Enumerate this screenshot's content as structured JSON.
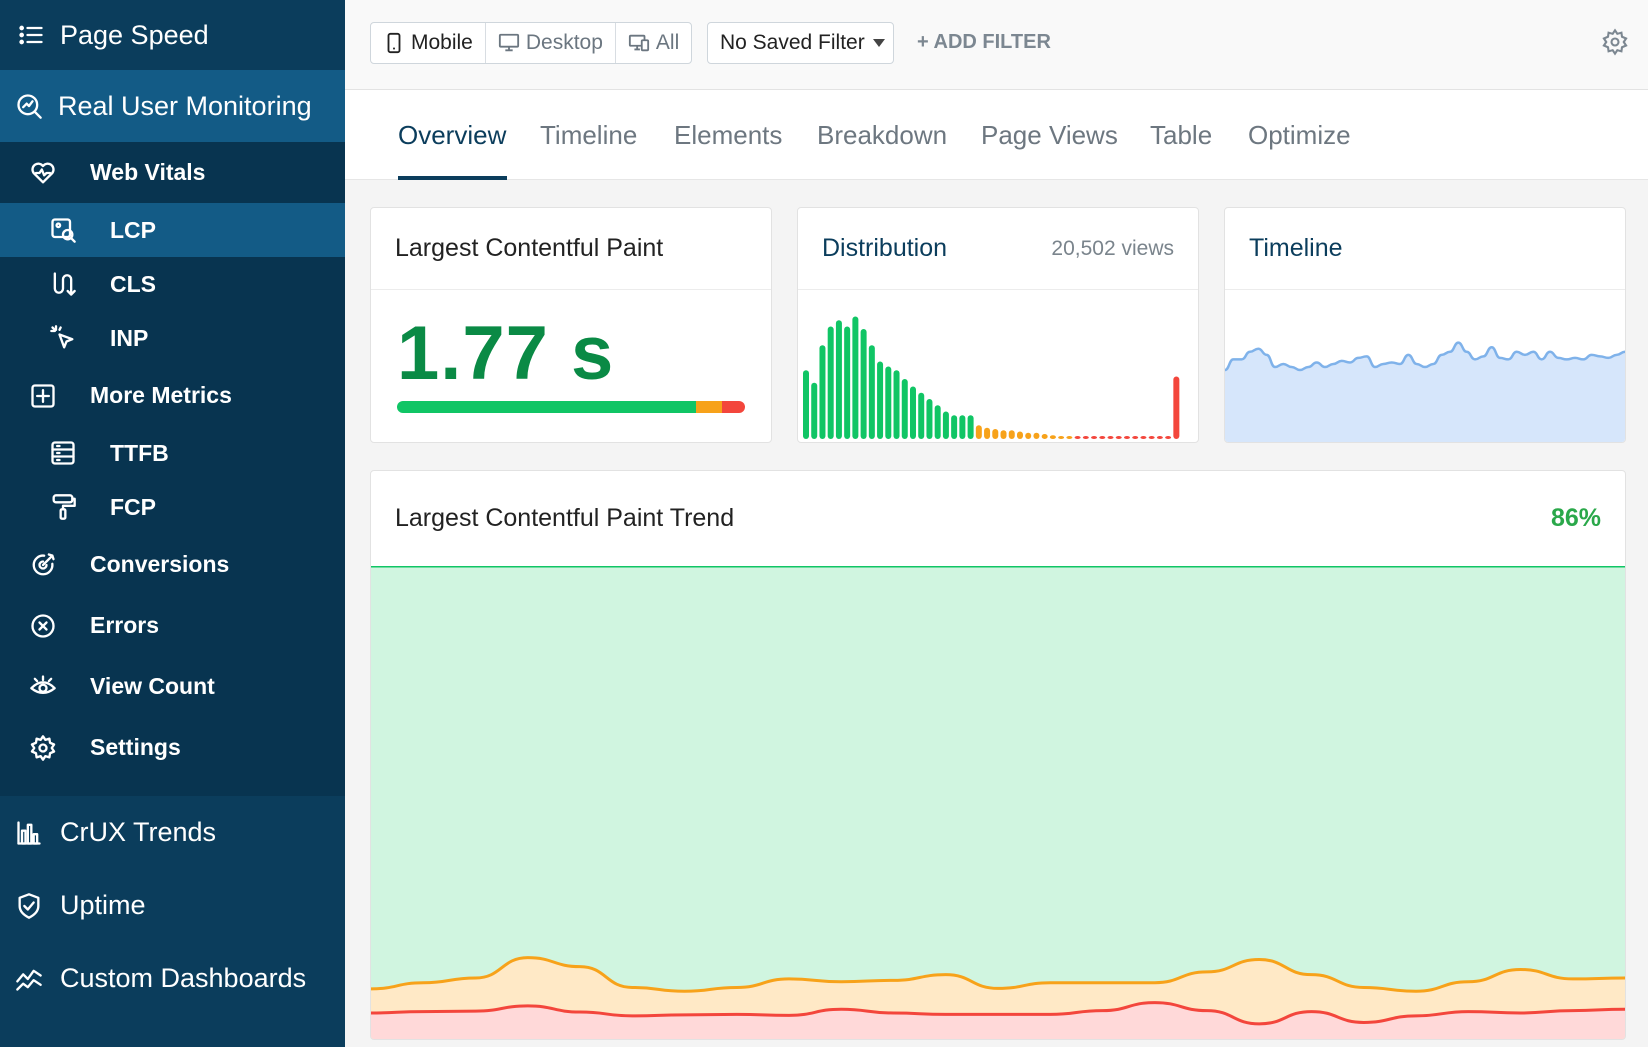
{
  "sidebar": {
    "top_label": "Page Speed",
    "rum_label": "Real User Monitoring",
    "items": [
      {
        "label": "Web Vitals",
        "icon": "heart-pulse-icon",
        "level": 1
      },
      {
        "label": "LCP",
        "icon": "image-search-icon",
        "level": 2,
        "active": true
      },
      {
        "label": "CLS",
        "icon": "layout-shift-icon",
        "level": 2
      },
      {
        "label": "INP",
        "icon": "pointer-click-icon",
        "level": 2
      },
      {
        "label": "More Metrics",
        "icon": "plus-square-icon",
        "level": 1
      },
      {
        "label": "TTFB",
        "icon": "server-icon",
        "level": 2
      },
      {
        "label": "FCP",
        "icon": "paint-roller-icon",
        "level": 2
      },
      {
        "label": "Conversions",
        "icon": "target-icon",
        "level": 1
      },
      {
        "label": "Errors",
        "icon": "x-circle-icon",
        "level": 1
      },
      {
        "label": "View Count",
        "icon": "eye-icon",
        "level": 1
      },
      {
        "label": "Settings",
        "icon": "gear-icon",
        "level": 1
      }
    ],
    "bottom": [
      {
        "label": "CrUX Trends",
        "icon": "bar-chart-icon"
      },
      {
        "label": "Uptime",
        "icon": "shield-check-icon"
      },
      {
        "label": "Custom Dashboards",
        "icon": "trend-line-icon"
      }
    ]
  },
  "toolbar": {
    "devices": [
      {
        "label": "Mobile",
        "icon": "phone-icon",
        "active": true
      },
      {
        "label": "Desktop",
        "icon": "monitor-icon",
        "active": false
      },
      {
        "label": "All",
        "icon": "devices-icon",
        "active": false
      }
    ],
    "filter_select": "No Saved Filter",
    "add_filter": "+ ADD FILTER"
  },
  "tabs": [
    "Overview",
    "Timeline",
    "Elements",
    "Breakdown",
    "Page Views",
    "Table",
    "Optimize"
  ],
  "active_tab": "Overview",
  "lcp_card": {
    "title": "Largest Contentful Paint",
    "value": "1.77 s",
    "bar": {
      "good": 0.86,
      "needs_improvement": 0.075,
      "poor": 0.065
    }
  },
  "distribution_card": {
    "title": "Distribution",
    "views": "20,502 views"
  },
  "timeline_card": {
    "title": "Timeline"
  },
  "trend_card": {
    "title": "Largest Contentful Paint Trend",
    "percent": "86%"
  },
  "colors": {
    "good": "#10c565",
    "needs_improvement": "#f7a21a",
    "poor": "#f3463c",
    "brand_dark": "#0b3d5c",
    "brand_active": "#135b86"
  },
  "chart_data": [
    {
      "type": "bar",
      "title": "Distribution",
      "values": [
        0.55,
        0.45,
        0.75,
        0.9,
        0.95,
        0.9,
        0.98,
        0.88,
        0.75,
        0.62,
        0.58,
        0.55,
        0.48,
        0.42,
        0.37,
        0.32,
        0.27,
        0.22,
        0.19,
        0.19,
        0.19,
        0.11,
        0.09,
        0.08,
        0.07,
        0.07,
        0.06,
        0.05,
        0.05,
        0.04,
        0.03,
        0.02,
        0.02,
        0.02,
        0.02,
        0.02,
        0.02,
        0.02,
        0.02,
        0.02,
        0.02,
        0.02,
        0.02,
        0.02,
        0.02,
        0.5
      ],
      "bar_colors": [
        "good",
        "good",
        "good",
        "good",
        "good",
        "good",
        "good",
        "good",
        "good",
        "good",
        "good",
        "good",
        "good",
        "good",
        "good",
        "good",
        "good",
        "good",
        "good",
        "good",
        "good",
        "needs_improvement",
        "needs_improvement",
        "needs_improvement",
        "needs_improvement",
        "needs_improvement",
        "needs_improvement",
        "needs_improvement",
        "needs_improvement",
        "needs_improvement",
        "needs_improvement",
        "needs_improvement",
        "needs_improvement",
        "poor",
        "poor",
        "poor",
        "poor",
        "poor",
        "poor",
        "poor",
        "poor",
        "poor",
        "poor",
        "poor",
        "poor",
        "poor"
      ]
    },
    {
      "type": "area",
      "title": "Timeline",
      "values": [
        0.48,
        0.55,
        0.55,
        0.6,
        0.62,
        0.58,
        0.5,
        0.52,
        0.5,
        0.48,
        0.5,
        0.53,
        0.5,
        0.52,
        0.54,
        0.53,
        0.56,
        0.57,
        0.5,
        0.52,
        0.53,
        0.52,
        0.58,
        0.52,
        0.5,
        0.52,
        0.58,
        0.6,
        0.66,
        0.6,
        0.55,
        0.57,
        0.63,
        0.56,
        0.55,
        0.6,
        0.58,
        0.6,
        0.55,
        0.6,
        0.56,
        0.55,
        0.56,
        0.55,
        0.58,
        0.57,
        0.56,
        0.58,
        0.6
      ]
    },
    {
      "type": "area",
      "title": "Largest Contentful Paint Trend",
      "ylim": [
        0,
        1
      ],
      "series": [
        {
          "values": [
            1,
            1,
            1,
            1,
            1,
            1,
            1,
            1,
            1,
            1,
            1,
            1,
            1,
            1,
            1,
            1,
            1,
            1,
            1,
            1,
            1,
            1,
            1,
            1,
            1
          ]
        },
        {
          "values": [
            0.106,
            0.119,
            0.129,
            0.172,
            0.153,
            0.109,
            0.101,
            0.109,
            0.127,
            0.121,
            0.124,
            0.136,
            0.107,
            0.119,
            0.119,
            0.119,
            0.142,
            0.168,
            0.136,
            0.109,
            0.101,
            0.121,
            0.147,
            0.127,
            0.129
          ]
        },
        {
          "values": [
            0.055,
            0.058,
            0.059,
            0.07,
            0.057,
            0.049,
            0.051,
            0.052,
            0.05,
            0.063,
            0.055,
            0.052,
            0.052,
            0.052,
            0.06,
            0.077,
            0.06,
            0.032,
            0.058,
            0.035,
            0.049,
            0.058,
            0.055,
            0.06,
            0.063
          ]
        }
      ]
    }
  ]
}
